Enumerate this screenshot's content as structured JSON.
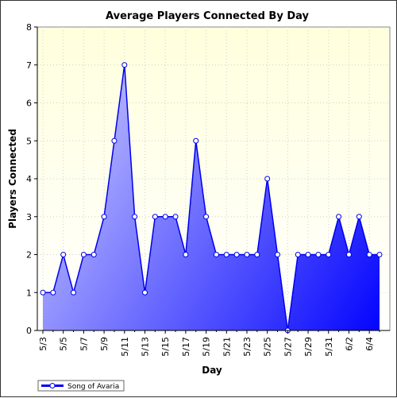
{
  "chart_data": {
    "type": "area",
    "title": "Average Players Connected By Day",
    "xlabel": "Day",
    "ylabel": "Players Connected",
    "ylim": [
      0,
      8
    ],
    "yticks": [
      "0",
      "1",
      "2",
      "3",
      "4",
      "5",
      "6",
      "7",
      "8"
    ],
    "x": [
      "5/3",
      "5/4",
      "5/5",
      "5/6",
      "5/7",
      "5/8",
      "5/9",
      "5/10",
      "5/11",
      "5/12",
      "5/13",
      "5/14",
      "5/15",
      "5/16",
      "5/17",
      "5/18",
      "5/19",
      "5/20",
      "5/21",
      "5/22",
      "5/23",
      "5/24",
      "5/25",
      "5/26",
      "5/27",
      "5/28",
      "5/29",
      "5/30",
      "5/31",
      "6/1",
      "6/2",
      "6/3",
      "6/4",
      "6/5"
    ],
    "xtick_labels": [
      "5/3",
      "5/5",
      "5/7",
      "5/9",
      "5/11",
      "5/13",
      "5/15",
      "5/17",
      "5/19",
      "5/21",
      "5/23",
      "5/25",
      "5/27",
      "5/29",
      "5/31",
      "6/2",
      "6/4"
    ],
    "series": [
      {
        "name": "Song of Avaria",
        "values": [
          1,
          1,
          2,
          1,
          2,
          2,
          3,
          5,
          7,
          3,
          1,
          3,
          3,
          3,
          2,
          5,
          3,
          2,
          2,
          2,
          2,
          2,
          4,
          2,
          0,
          2,
          2,
          2,
          2,
          3,
          2,
          3,
          2,
          2
        ]
      }
    ],
    "grid": true,
    "legend": "bottom-left",
    "colors": {
      "plot_background_top": "#ffffdd",
      "line": "#0000ee",
      "fill_light": "#c8c8ff",
      "fill_dark": "#0000ff",
      "marker_fill": "#ffffff"
    }
  }
}
